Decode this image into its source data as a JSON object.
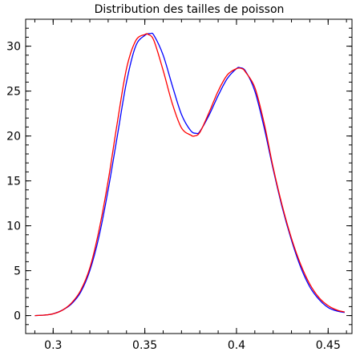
{
  "chart_data": {
    "type": "line",
    "title": "Distribution des tailles de poisson",
    "xlabel": "",
    "ylabel": "",
    "xlim": [
      0.285,
      0.463
    ],
    "ylim": [
      -2,
      33
    ],
    "x_ticks": [
      0.3,
      0.35,
      0.4,
      0.45
    ],
    "x_tick_labels": [
      "0.3",
      "0.35",
      "0.4",
      "0.45"
    ],
    "y_ticks": [
      0,
      5,
      10,
      15,
      20,
      25,
      30
    ],
    "y_tick_labels": [
      "0",
      "5",
      "10",
      "15",
      "20",
      "25",
      "30"
    ],
    "x_minor_step": 0.01,
    "y_minor_step": 1,
    "grid": false,
    "series": [
      {
        "color": "#0000ff",
        "x": [
          0.29,
          0.295,
          0.3,
          0.305,
          0.31,
          0.315,
          0.32,
          0.325,
          0.33,
          0.335,
          0.34,
          0.345,
          0.35,
          0.353,
          0.355,
          0.36,
          0.365,
          0.37,
          0.375,
          0.378,
          0.38,
          0.385,
          0.39,
          0.395,
          0.4,
          0.402,
          0.405,
          0.41,
          0.415,
          0.42,
          0.425,
          0.43,
          0.435,
          0.44,
          0.445,
          0.45,
          0.455,
          0.459
        ],
        "y": [
          0,
          0.05,
          0.2,
          0.6,
          1.3,
          2.6,
          5.0,
          8.8,
          14.0,
          20.0,
          26.0,
          30.0,
          31.2,
          31.4,
          31.2,
          29.0,
          25.6,
          22.4,
          20.6,
          20.3,
          20.5,
          22.3,
          24.5,
          26.4,
          27.5,
          27.6,
          27.2,
          25.0,
          21.0,
          16.3,
          12.0,
          8.4,
          5.4,
          3.2,
          1.8,
          0.9,
          0.5,
          0.35
        ]
      },
      {
        "color": "#ff0000",
        "x": [
          0.29,
          0.295,
          0.3,
          0.305,
          0.31,
          0.315,
          0.32,
          0.325,
          0.33,
          0.335,
          0.34,
          0.345,
          0.35,
          0.352,
          0.355,
          0.36,
          0.365,
          0.37,
          0.375,
          0.377,
          0.38,
          0.385,
          0.39,
          0.395,
          0.4,
          0.403,
          0.405,
          0.41,
          0.415,
          0.42,
          0.425,
          0.43,
          0.435,
          0.44,
          0.445,
          0.45,
          0.455,
          0.459
        ],
        "y": [
          0,
          0.05,
          0.2,
          0.6,
          1.4,
          2.8,
          5.3,
          9.5,
          15.0,
          21.5,
          27.5,
          30.6,
          31.3,
          31.3,
          30.6,
          27.3,
          23.6,
          20.9,
          20.1,
          20.0,
          20.4,
          22.6,
          25.0,
          26.8,
          27.5,
          27.5,
          27.1,
          25.4,
          21.5,
          16.5,
          12.2,
          8.6,
          5.7,
          3.5,
          2.0,
          1.1,
          0.6,
          0.4
        ]
      }
    ]
  }
}
